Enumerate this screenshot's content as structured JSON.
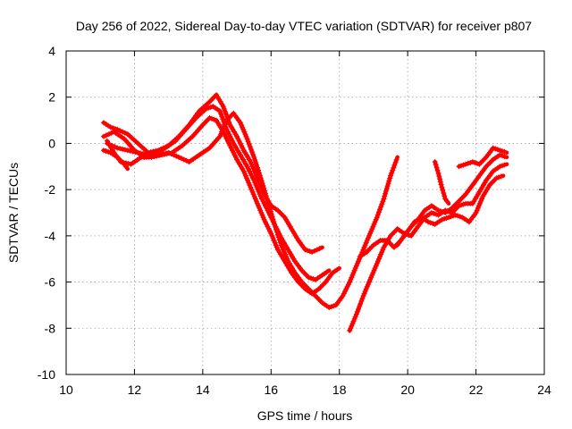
{
  "chart_data": {
    "type": "line",
    "title": "Day 256 of 2022, Sidereal Day-to-day VTEC variation (SDTVAR) for receiver p807",
    "xlabel": "GPS time / hours",
    "ylabel": "SDTVAR / TECUs",
    "xlim": [
      10,
      24
    ],
    "ylim": [
      -10,
      4
    ],
    "xticks": [
      10,
      12,
      14,
      16,
      18,
      20,
      22,
      24
    ],
    "yticks": [
      -10,
      -8,
      -6,
      -4,
      -2,
      0,
      2,
      4
    ],
    "grid": true,
    "color": "#ff0000",
    "marker": "plus",
    "series": [
      {
        "x": [
          11.1,
          11.3,
          11.5,
          11.8,
          12.1,
          12.4,
          12.7,
          13.0,
          13.3,
          13.6,
          13.9,
          14.2,
          14.4,
          14.6,
          14.8,
          15.0,
          15.2,
          15.4,
          15.6,
          15.8,
          16.0,
          16.2,
          16.4,
          16.6,
          16.8,
          17.0,
          17.2,
          17.5
        ],
        "y": [
          0.9,
          0.7,
          0.6,
          0.4,
          0.0,
          -0.4,
          -0.3,
          -0.1,
          0.3,
          0.8,
          1.4,
          1.8,
          2.1,
          1.6,
          0.8,
          0.3,
          -0.3,
          -0.8,
          -1.5,
          -2.2,
          -2.7,
          -2.9,
          -3.2,
          -3.7,
          -4.2,
          -4.6,
          -4.7,
          -4.5
        ]
      },
      {
        "x": [
          11.1,
          11.4,
          11.7,
          12.0,
          12.3,
          12.6,
          12.9,
          13.2,
          13.5,
          13.8,
          14.1,
          14.3,
          14.5,
          14.7,
          14.9,
          15.1,
          15.3,
          15.5,
          15.7,
          15.9,
          16.1,
          16.3,
          16.5,
          16.7,
          16.9,
          17.1,
          17.3,
          17.5,
          17.7
        ],
        "y": [
          0.3,
          0.5,
          0.2,
          -0.3,
          -0.6,
          -0.5,
          -0.2,
          0.1,
          0.6,
          1.1,
          1.5,
          1.6,
          1.4,
          0.6,
          0.0,
          -0.5,
          -1.0,
          -1.6,
          -2.3,
          -2.9,
          -3.5,
          -4.1,
          -4.6,
          -5.1,
          -5.5,
          -5.8,
          -5.9,
          -5.7,
          -5.5
        ]
      },
      {
        "x": [
          11.2,
          11.4,
          11.6,
          11.9,
          12.2,
          12.5,
          12.8,
          13.1,
          13.4,
          13.7,
          14.0,
          14.2,
          14.4,
          14.6,
          14.8,
          15.0,
          15.2,
          15.4,
          15.6,
          15.8,
          16.0,
          16.2,
          16.4,
          16.6,
          16.8,
          17.0,
          17.2,
          17.4,
          17.6,
          17.8,
          18.0
        ],
        "y": [
          0.1,
          -0.4,
          -0.8,
          -0.9,
          -0.6,
          -0.6,
          -0.5,
          -0.4,
          -0.1,
          0.3,
          0.8,
          1.1,
          1.0,
          0.5,
          -0.1,
          -0.7,
          -1.2,
          -1.9,
          -2.6,
          -3.3,
          -3.9,
          -4.6,
          -5.1,
          -5.6,
          -6.0,
          -6.3,
          -6.5,
          -6.3,
          -6.0,
          -5.6,
          -5.4
        ]
      },
      {
        "x": [
          11.1,
          11.3,
          11.5,
          11.7,
          11.8
        ],
        "y": [
          -0.3,
          -0.4,
          -0.6,
          -0.9,
          -1.1
        ]
      },
      {
        "x": [
          11.2,
          11.5,
          11.8,
          12.1,
          12.4,
          12.7,
          13.0,
          13.3,
          13.6,
          13.9,
          14.2,
          14.5,
          14.7,
          14.9,
          15.1,
          15.3,
          15.5,
          15.7,
          15.9,
          16.1,
          16.3,
          16.5,
          16.7,
          16.9,
          17.1,
          17.3,
          17.5,
          17.7,
          17.9,
          18.1,
          18.3,
          18.5,
          18.7,
          18.9,
          19.1,
          19.3,
          19.5,
          19.7
        ],
        "y": [
          0.0,
          -0.2,
          -0.3,
          -0.4,
          -0.5,
          -0.5,
          -0.4,
          -0.6,
          -0.8,
          -0.5,
          -0.2,
          0.3,
          1.0,
          1.3,
          0.9,
          0.2,
          -0.6,
          -1.5,
          -2.5,
          -3.5,
          -4.4,
          -5.1,
          -5.6,
          -6.0,
          -6.3,
          -6.6,
          -6.9,
          -7.1,
          -7.0,
          -6.6,
          -6.0,
          -5.3,
          -4.6,
          -3.9,
          -3.2,
          -2.4,
          -1.4,
          -0.6
        ]
      },
      {
        "x": [
          18.3,
          18.5,
          18.7,
          18.9,
          19.1,
          19.3,
          19.5,
          19.7,
          19.9,
          20.1,
          20.3,
          20.5,
          20.7,
          20.9,
          21.1,
          21.3,
          21.5,
          21.7,
          21.9,
          22.1,
          22.3,
          22.5,
          22.7,
          22.9
        ],
        "y": [
          -8.1,
          -7.4,
          -6.6,
          -5.9,
          -5.2,
          -4.5,
          -4.0,
          -3.7,
          -3.9,
          -4.0,
          -3.6,
          -3.2,
          -3.0,
          -3.1,
          -2.9,
          -3.0,
          -2.7,
          -2.6,
          -2.6,
          -2.1,
          -1.6,
          -1.2,
          -1.0,
          -0.9
        ]
      },
      {
        "x": [
          18.6,
          18.8,
          19.0,
          19.2,
          19.4,
          19.6,
          19.8,
          20.0,
          20.2,
          20.4,
          20.6,
          20.8,
          21.0,
          21.2,
          21.4,
          21.6,
          21.8,
          22.0,
          22.2,
          22.4,
          22.6,
          22.8
        ],
        "y": [
          -4.9,
          -4.7,
          -4.4,
          -4.2,
          -4.2,
          -4.5,
          -4.2,
          -3.8,
          -3.4,
          -3.2,
          -3.4,
          -3.5,
          -3.3,
          -3.2,
          -3.1,
          -3.2,
          -3.4,
          -3.0,
          -2.3,
          -1.8,
          -1.5,
          -1.4
        ]
      },
      {
        "x": [
          19.7,
          19.9,
          20.1,
          20.3,
          20.5,
          20.7,
          20.9,
          21.1,
          21.3,
          21.5,
          21.7,
          21.9,
          22.1,
          22.3,
          22.5,
          22.7,
          22.9
        ],
        "y": [
          -4.4,
          -4.0,
          -3.6,
          -3.3,
          -2.9,
          -2.7,
          -2.9,
          -3.0,
          -2.8,
          -2.5,
          -2.2,
          -1.8,
          -1.4,
          -1.0,
          -0.7,
          -0.5,
          -0.6
        ]
      },
      {
        "x": [
          20.8,
          20.9,
          21.0,
          21.1,
          21.2
        ],
        "y": [
          -0.8,
          -1.3,
          -1.9,
          -2.4,
          -2.6
        ]
      },
      {
        "x": [
          21.5,
          21.7,
          21.9,
          22.1,
          22.3,
          22.5,
          22.7,
          22.9
        ],
        "y": [
          -1.0,
          -0.9,
          -0.8,
          -0.9,
          -0.6,
          -0.2,
          -0.3,
          -0.4
        ]
      }
    ]
  }
}
